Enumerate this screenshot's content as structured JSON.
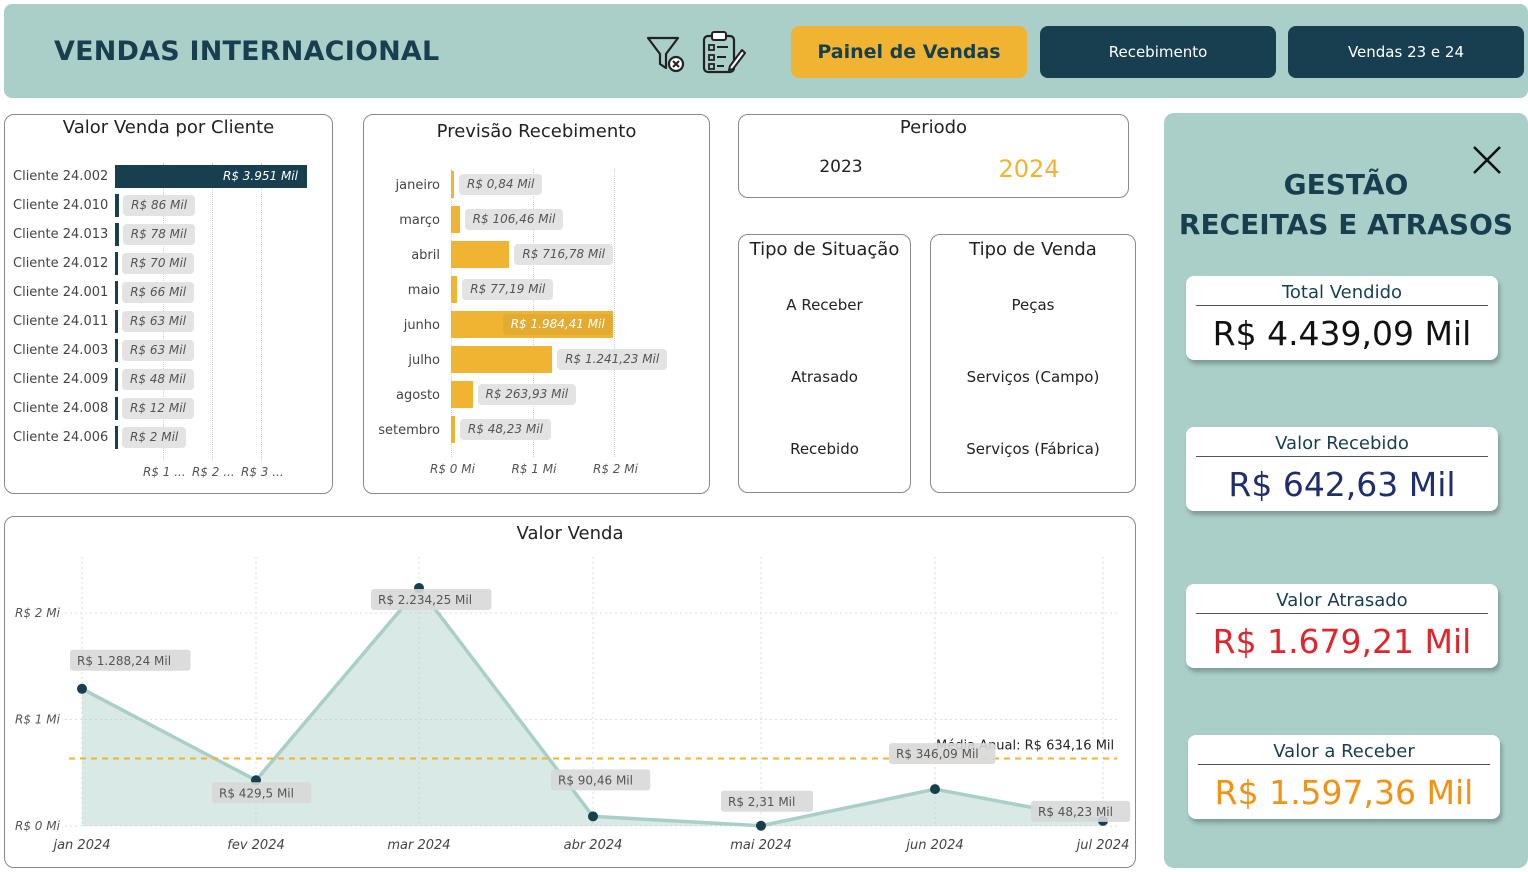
{
  "header": {
    "title": "VENDAS INTERNACIONAL",
    "buttons": [
      {
        "label": "Painel de Vendas",
        "active": true
      },
      {
        "label": "Recebimento",
        "active": false
      },
      {
        "label": "Vendas 23 e 24",
        "active": false
      }
    ],
    "icons": [
      "clear-filter-icon",
      "checklist-icon"
    ]
  },
  "client_chart": {
    "title": "Valor Venda por Cliente",
    "rows": [
      {
        "label": "Cliente 24.002",
        "value": 3951,
        "text": "R$ 3.951 Mil"
      },
      {
        "label": "Cliente 24.010",
        "value": 86,
        "text": "R$ 86 Mil"
      },
      {
        "label": "Cliente 24.013",
        "value": 78,
        "text": "R$ 78 Mil"
      },
      {
        "label": "Cliente 24.012",
        "value": 70,
        "text": "R$ 70 Mil"
      },
      {
        "label": "Cliente 24.001",
        "value": 66,
        "text": "R$ 66 Mil"
      },
      {
        "label": "Cliente 24.011",
        "value": 63,
        "text": "R$ 63 Mil"
      },
      {
        "label": "Cliente 24.003",
        "value": 63,
        "text": "R$ 63 Mil"
      },
      {
        "label": "Cliente 24.009",
        "value": 48,
        "text": "R$ 48 Mil"
      },
      {
        "label": "Cliente 24.008",
        "value": 12,
        "text": "R$ 12 Mil"
      },
      {
        "label": "Cliente 24.006",
        "value": 2,
        "text": "R$ 2 Mil"
      }
    ],
    "ticks": [
      "R$ 1 ...",
      "R$ 2 ...",
      "R$ 3 ..."
    ],
    "bar_color": "#173f4f"
  },
  "forecast_chart": {
    "title": "Previsão Recebimento",
    "rows": [
      {
        "label": "janeiro",
        "value": 0.84,
        "text": "R$ 0,84 Mil"
      },
      {
        "label": "março",
        "value": 106.46,
        "text": "R$ 106,46 Mil"
      },
      {
        "label": "abril",
        "value": 716.78,
        "text": "R$ 716,78 Mil"
      },
      {
        "label": "maio",
        "value": 77.19,
        "text": "R$ 77,19 Mil"
      },
      {
        "label": "junho",
        "value": 1984.41,
        "text": "R$ 1.984,41 Mil"
      },
      {
        "label": "julho",
        "value": 1241.23,
        "text": "R$ 1.241,23 Mil"
      },
      {
        "label": "agosto",
        "value": 263.93,
        "text": "R$ 263,93 Mil"
      },
      {
        "label": "setembro",
        "value": 48.23,
        "text": "R$ 48,23 Mil"
      }
    ],
    "ticks": [
      "R$ 0 Mi",
      "R$ 1 Mi",
      "R$ 2 Mi"
    ],
    "bar_color": "#f0b432"
  },
  "periodo": {
    "title": "Periodo",
    "options": [
      "2023",
      "2024"
    ],
    "selected": "2024"
  },
  "situacao": {
    "title": "Tipo de Situação",
    "options": [
      "A Receber",
      "Atrasado",
      "Recebido"
    ]
  },
  "tipo_venda": {
    "title": "Tipo de Venda",
    "options": [
      "Peças",
      "Serviços (Campo)",
      "Serviços (Fábrica)"
    ]
  },
  "chart_data": {
    "type": "area",
    "title": "Valor Venda",
    "x": [
      "jan 2024",
      "fev 2024",
      "mar 2024",
      "abr 2024",
      "mai 2024",
      "jun 2024",
      "jul 2024"
    ],
    "values": [
      1288.24,
      429.5,
      2234.25,
      90.46,
      2.31,
      346.09,
      48.23
    ],
    "value_labels": [
      "R$ 1.288,24 Mil",
      "R$ 429,5 Mil",
      "R$ 2.234,25 Mil",
      "R$ 90,46 Mil",
      "R$ 2,31 Mil",
      "R$ 346,09 Mil",
      "R$ 48,23 Mil"
    ],
    "y_ticks": [
      "R$ 0 Mi",
      "R$ 1 Mi",
      "R$ 2 Mi"
    ],
    "ylim": [
      0,
      2300
    ],
    "average_value": 634.16,
    "average_label": "Média Anual: R$ 634,16 Mil",
    "grid": true,
    "line_color": "#a9cfc8",
    "point_color": "#173f4f",
    "average_color": "#f0b432"
  },
  "side_panel": {
    "title_line1": "GESTÃO",
    "title_line2": "RECEITAS E ATRASOS",
    "kpis": [
      {
        "label": "Total Vendido",
        "value": "R$ 4.439,09 Mil",
        "color": "#111111"
      },
      {
        "label": "Valor Recebido",
        "value": "R$ 642,63 Mil",
        "color": "#1f2f6b"
      },
      {
        "label": "Valor Atrasado",
        "value": "R$ 1.679,21 Mil",
        "color": "#e0262d"
      },
      {
        "label": "Valor a Receber",
        "value": "R$ 1.597,36 Mil",
        "color": "#f39212"
      }
    ]
  }
}
